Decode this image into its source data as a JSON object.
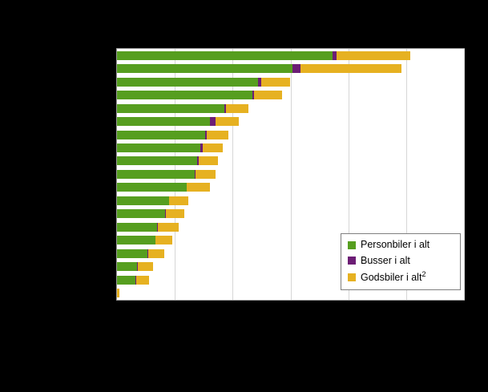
{
  "window": {
    "background_color": "#000000",
    "note": "chart title, category labels and axis tick labels are not visible (black text on black background)"
  },
  "legend": {
    "items": [
      {
        "label": "Personbiler i alt",
        "superscript": "",
        "color": "#569e1f"
      },
      {
        "label": "Busser i alt",
        "superscript": "",
        "color": "#6c1d75"
      },
      {
        "label": "Godsbiler  i alt",
        "superscript": "2",
        "color": "#e6b121"
      }
    ]
  },
  "chart_data": {
    "type": "bar",
    "orientation": "horizontal",
    "stacked": true,
    "title": "",
    "xlabel": "",
    "ylabel": "",
    "grid": true,
    "xlim": [
      0,
      100
    ],
    "units": "percent of x-axis width (numeric tick labels not visible in image)",
    "gridline_positions": [
      16.67,
      33.33,
      50,
      66.67,
      83.33,
      100
    ],
    "legend_position": "inside-bottom-right",
    "categories": [
      "",
      "",
      "",
      "",
      "",
      "",
      "",
      "",
      "",
      "",
      "",
      "",
      "",
      "",
      "",
      "",
      "",
      "",
      ""
    ],
    "series": [
      {
        "name": "Personbiler i alt",
        "color": "#569e1f",
        "values": [
          62.1,
          50.6,
          40.7,
          39.1,
          31.0,
          26.9,
          25.3,
          24.1,
          23.0,
          22.5,
          20.0,
          14.9,
          13.8,
          11.5,
          11.0,
          8.7,
          5.7,
          5.3,
          0
        ]
      },
      {
        "name": "Busser i alt",
        "color": "#6c1d75",
        "values": [
          1.1,
          2.3,
          0.9,
          0.5,
          0.5,
          1.4,
          0.5,
          0.5,
          0.5,
          0.2,
          0.2,
          0.2,
          0.2,
          0.2,
          0.2,
          0.2,
          0.2,
          0.2,
          0
        ]
      },
      {
        "name": "Godsbiler i alt2",
        "color": "#e6b121",
        "values": [
          21.4,
          29.2,
          8.3,
          8.0,
          6.4,
          6.7,
          6.4,
          6.0,
          5.7,
          5.7,
          6.7,
          5.5,
          5.5,
          6.0,
          4.8,
          4.8,
          4.6,
          3.7,
          0.7
        ]
      }
    ]
  }
}
